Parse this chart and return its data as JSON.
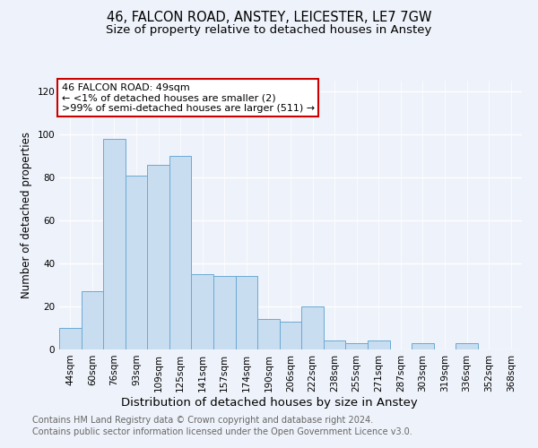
{
  "title1": "46, FALCON ROAD, ANSTEY, LEICESTER, LE7 7GW",
  "title2": "Size of property relative to detached houses in Anstey",
  "xlabel": "Distribution of detached houses by size in Anstey",
  "ylabel": "Number of detached properties",
  "categories": [
    "44sqm",
    "60sqm",
    "76sqm",
    "93sqm",
    "109sqm",
    "125sqm",
    "141sqm",
    "157sqm",
    "174sqm",
    "190sqm",
    "206sqm",
    "222sqm",
    "238sqm",
    "255sqm",
    "271sqm",
    "287sqm",
    "303sqm",
    "319sqm",
    "336sqm",
    "352sqm",
    "368sqm"
  ],
  "values": [
    10,
    27,
    98,
    81,
    86,
    90,
    35,
    34,
    34,
    14,
    13,
    20,
    4,
    3,
    4,
    0,
    3,
    0,
    3,
    0,
    0
  ],
  "bar_color": "#c9ddf0",
  "bar_edge_color": "#6aaad4",
  "annotation_text": "46 FALCON ROAD: 49sqm\n← <1% of detached houses are smaller (2)\n>99% of semi-detached houses are larger (511) →",
  "annotation_box_color": "#ffffff",
  "annotation_box_edge_color": "#cc0000",
  "ylim": [
    0,
    125
  ],
  "yticks": [
    0,
    20,
    40,
    60,
    80,
    100,
    120
  ],
  "footer1": "Contains HM Land Registry data © Crown copyright and database right 2024.",
  "footer2": "Contains public sector information licensed under the Open Government Licence v3.0.",
  "background_color": "#eef2fa",
  "grid_color": "#ffffff",
  "title1_fontsize": 10.5,
  "title2_fontsize": 9.5,
  "xlabel_fontsize": 9.5,
  "ylabel_fontsize": 8.5,
  "tick_fontsize": 7.5,
  "footer_fontsize": 7.0,
  "annotation_fontsize": 8.0
}
